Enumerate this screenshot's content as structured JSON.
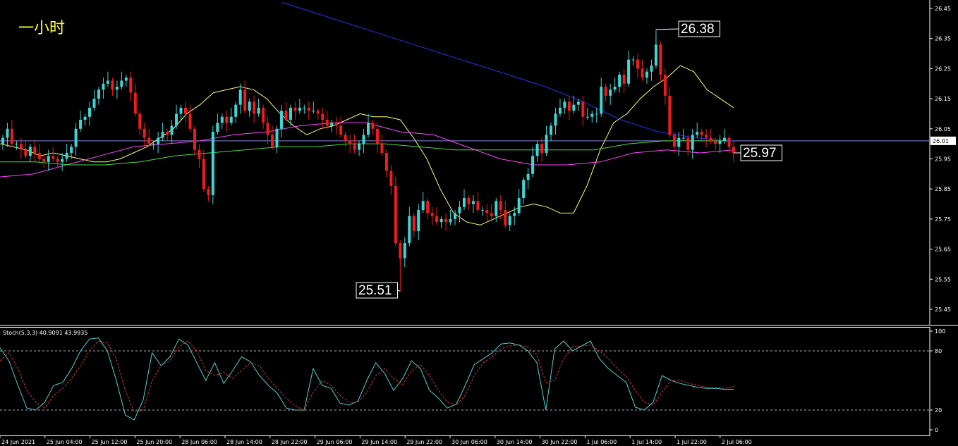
{
  "chart_data": [
    {
      "type": "candlestick",
      "title": "一小时",
      "ylim": [
        25.41,
        26.47
      ],
      "y_ticks": [
        "26.45",
        "26.35",
        "26.25",
        "26.15",
        "26.05",
        "25.95",
        "25.85",
        "25.75",
        "25.65",
        "25.55",
        "25.45"
      ],
      "current_price": "26.01",
      "annotations": {
        "high": "26.38",
        "low": "25.51",
        "last": "25.97"
      },
      "x_labels": [
        "24 Jun 2021",
        "25 Jun 04:00",
        "25 Jun 12:00",
        "25 Jun 20:00",
        "28 Jun 06:00",
        "28 Jun 14:00",
        "28 Jun 22:00",
        "29 Jun 06:00",
        "29 Jun 14:00",
        "29 Jun 22:00",
        "30 Jun 06:00",
        "30 Jun 14:00",
        "30 Jun 22:00",
        "1 Jul 06:00",
        "1 Jul 14:00",
        "1 Jul 22:00",
        "2 Jul 06:00"
      ],
      "closes": [
        26.02,
        26.05,
        26.0,
        26.0,
        25.98,
        25.96,
        25.99,
        25.97,
        25.95,
        25.94,
        25.96,
        25.95,
        25.94,
        25.95,
        25.97,
        25.99,
        26.05,
        26.08,
        26.09,
        26.12,
        26.15,
        26.18,
        26.2,
        26.21,
        26.18,
        26.19,
        26.21,
        26.22,
        26.17,
        26.1,
        26.05,
        26.02,
        26.0,
        26.0,
        26.02,
        26.04,
        26.03,
        26.06,
        26.1,
        26.12,
        26.1,
        26.05,
        25.98,
        25.95,
        25.85,
        25.83,
        26.04,
        26.07,
        26.09,
        26.07,
        26.09,
        26.13,
        26.18,
        26.11,
        26.14,
        26.1,
        26.12,
        26.07,
        26.03,
        25.99,
        26.05,
        26.11,
        26.08,
        26.12,
        26.11,
        26.12,
        26.12,
        26.11,
        26.11,
        26.1,
        26.08,
        26.06,
        26.07,
        26.06,
        26.03,
        26.01,
        26.0,
        25.98,
        26.0,
        26.03,
        26.07,
        26.05,
        26.0,
        25.97,
        25.91,
        25.86,
        25.67,
        25.62,
        25.67,
        25.76,
        25.71,
        25.78,
        25.81,
        25.77,
        25.76,
        25.74,
        25.75,
        25.74,
        25.75,
        25.77,
        25.79,
        25.82,
        25.8,
        25.81,
        25.78,
        25.78,
        25.77,
        25.76,
        25.81,
        25.78,
        25.73,
        25.76,
        25.77,
        25.82,
        25.88,
        25.9,
        25.96,
        26.0,
        25.97,
        26.03,
        26.06,
        26.1,
        26.12,
        26.14,
        26.11,
        26.13,
        26.14,
        26.09,
        26.09,
        26.1,
        26.1,
        26.19,
        26.16,
        26.18,
        26.19,
        26.23,
        26.2,
        26.28,
        26.28,
        26.25,
        26.22,
        26.24,
        26.26,
        26.33,
        26.23,
        26.16,
        26.03,
        25.99,
        26.02,
        26.02,
        25.98,
        26.03,
        26.04,
        26.03,
        26.02,
        26.01,
        26.0,
        26.01,
        26.02,
        25.99,
        25.97
      ],
      "series": [
        {
          "name": "",
          "color": "#ffff66",
          "values": [
            26.0,
            25.99,
            25.98,
            25.96,
            25.97,
            25.96,
            25.95,
            25.94,
            25.94,
            25.95,
            25.97,
            25.99,
            26.02,
            26.05,
            26.1,
            26.13,
            26.17,
            26.18,
            26.19,
            26.18,
            26.15,
            26.1,
            26.06,
            26.03,
            26.05,
            26.06,
            26.08,
            26.1,
            26.09,
            26.09,
            26.08,
            26.02,
            25.95,
            25.85,
            25.77,
            25.74,
            25.73,
            25.75,
            25.77,
            25.79,
            25.8,
            25.79,
            25.77,
            25.77,
            25.86,
            25.98,
            26.07,
            26.1,
            26.15,
            26.19,
            26.22,
            26.26,
            26.24,
            26.18,
            26.15,
            26.12
          ]
        },
        {
          "name": "",
          "color": "#ff44ff",
          "values": [
            25.89,
            25.9,
            25.93,
            25.96,
            25.99,
            26.0,
            26.01,
            26.03,
            26.04,
            26.06,
            26.07,
            26.07,
            26.04,
            26.03,
            25.99,
            25.95,
            25.93,
            25.93,
            25.94,
            25.97,
            25.98,
            25.97,
            25.98
          ]
        },
        {
          "name": "",
          "color": "#44dd44",
          "values": [
            25.94,
            25.94,
            25.93,
            25.93,
            25.94,
            25.96,
            25.97,
            25.98,
            25.99,
            25.99,
            26.0,
            26.0,
            25.99,
            25.98,
            25.98,
            25.98,
            25.98,
            25.98,
            26.0,
            26.01,
            26.01,
            26.01
          ]
        },
        {
          "name": "",
          "color": "#2233ee",
          "values": [
            26.47,
            26.43,
            26.39,
            26.35,
            26.31,
            26.27,
            26.23,
            26.19,
            26.14,
            26.08,
            26.04,
            26.02,
            26.01
          ]
        }
      ]
    },
    {
      "type": "line",
      "indicator_label": "Stoch(5,3,3) 40.9091 43.9935",
      "ylim": [
        0,
        100
      ],
      "y_ticks": [
        "100",
        "80",
        "20",
        "0"
      ],
      "levels": [
        80,
        20
      ],
      "series": [
        {
          "name": "",
          "color": "#4dd2d2",
          "values": [
            83,
            70,
            45,
            22,
            20,
            28,
            45,
            48,
            62,
            80,
            92,
            93,
            80,
            50,
            15,
            10,
            30,
            78,
            65,
            74,
            92,
            86,
            68,
            50,
            68,
            47,
            60,
            74,
            69,
            55,
            45,
            37,
            22,
            20,
            20,
            62,
            45,
            42,
            27,
            25,
            29,
            50,
            68,
            57,
            40,
            52,
            70,
            62,
            40,
            32,
            22,
            26,
            45,
            66,
            72,
            78,
            87,
            88,
            86,
            80,
            68,
            20,
            82,
            90,
            80,
            85,
            90,
            72,
            62,
            55,
            48,
            23,
            20,
            28,
            55,
            50,
            47,
            45,
            43,
            42,
            42,
            41,
            41
          ]
        },
        {
          "name": "",
          "color": "#dd3333",
          "values": [
            70,
            78,
            62,
            40,
            28,
            22,
            35,
            42,
            52,
            65,
            80,
            90,
            88,
            72,
            40,
            18,
            20,
            50,
            65,
            70,
            84,
            90,
            80,
            60,
            55,
            58,
            52,
            60,
            68,
            65,
            52,
            42,
            32,
            24,
            20,
            38,
            50,
            45,
            35,
            28,
            28,
            38,
            55,
            62,
            52,
            46,
            60,
            66,
            55,
            40,
            28,
            25,
            35,
            55,
            68,
            74,
            82,
            85,
            86,
            84,
            76,
            48,
            50,
            72,
            84,
            85,
            86,
            80,
            72,
            62,
            54,
            40,
            28,
            25,
            38,
            50,
            50,
            47,
            45,
            43,
            43,
            42,
            44
          ]
        }
      ]
    }
  ]
}
